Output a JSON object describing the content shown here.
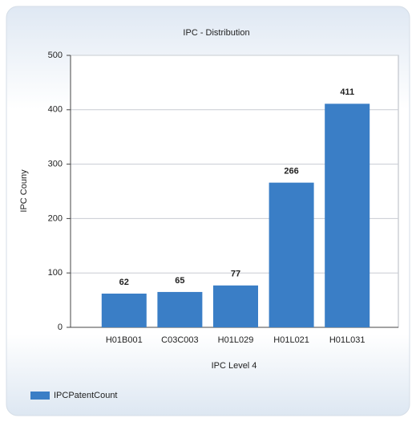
{
  "chart_data": {
    "type": "bar",
    "title": "IPC - Distribution",
    "x_label": "IPC Level 4",
    "y_label": "IPC Couny",
    "categories": [
      "H01B001",
      "C03C003",
      "H01L029",
      "H01L021",
      "H01L031"
    ],
    "series": [
      {
        "name": "IPCPatentCount",
        "color": "#3a7ec6",
        "values": [
          62,
          65,
          77,
          266,
          411
        ]
      }
    ],
    "ylim": [
      0,
      500
    ],
    "yticks": [
      0,
      100,
      200,
      300,
      400,
      500
    ],
    "grid": true,
    "legend": "bottom-left"
  }
}
